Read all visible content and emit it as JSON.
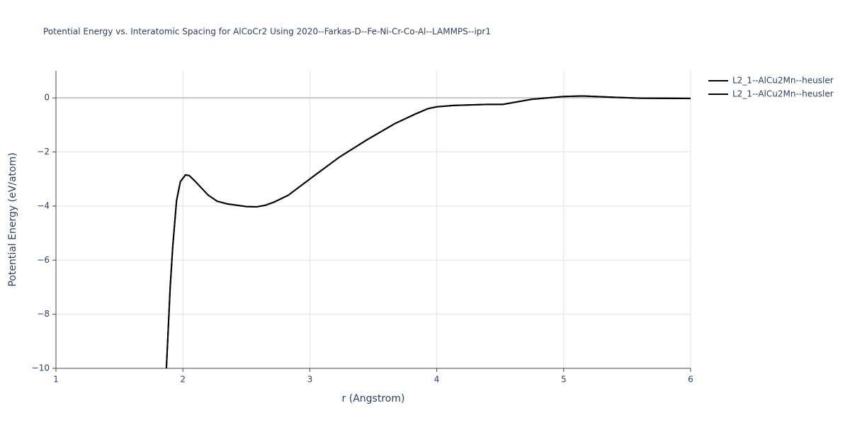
{
  "chart_data": {
    "type": "line",
    "title": "Potential Energy vs. Interatomic Spacing for AlCoCr2 Using 2020--Farkas-D--Fe-Ni-Cr-Co-Al--LAMMPS--ipr1",
    "xlabel": "r (Angstrom)",
    "ylabel": "Potential Energy (eV/atom)",
    "x": [
      1.87,
      1.9,
      1.92,
      1.95,
      1.98,
      2.02,
      2.05,
      2.1,
      2.2,
      2.27,
      2.35,
      2.5,
      2.58,
      2.65,
      2.72,
      2.83,
      3.0,
      3.23,
      3.45,
      3.67,
      3.83,
      3.93,
      4.0,
      4.13,
      4.4,
      4.52,
      4.75,
      5.0,
      5.15,
      5.4,
      5.6,
      6.0
    ],
    "series": [
      {
        "name": "L2_1--AlCu2Mn--heusler",
        "color": "#000000",
        "values": [
          -10,
          -7,
          -5.5,
          -3.8,
          -3.1,
          -2.85,
          -2.87,
          -3.1,
          -3.6,
          -3.82,
          -3.92,
          -4.02,
          -4.03,
          -3.97,
          -3.85,
          -3.6,
          -3.0,
          -2.2,
          -1.55,
          -0.95,
          -0.6,
          -0.4,
          -0.33,
          -0.28,
          -0.24,
          -0.24,
          -0.05,
          0.05,
          0.07,
          0.02,
          -0.01,
          -0.02
        ]
      },
      {
        "name": "L2_1--AlCu2Mn--heusler",
        "color": "#000000",
        "values": [
          -10,
          -7,
          -5.5,
          -3.8,
          -3.1,
          -2.85,
          -2.87,
          -3.1,
          -3.6,
          -3.82,
          -3.92,
          -4.02,
          -4.03,
          -3.97,
          -3.85,
          -3.6,
          -3.0,
          -2.2,
          -1.55,
          -0.95,
          -0.6,
          -0.4,
          -0.33,
          -0.28,
          -0.24,
          -0.24,
          -0.05,
          0.05,
          0.07,
          0.02,
          -0.01,
          -0.02
        ]
      }
    ],
    "xlim": [
      1,
      6
    ],
    "ylim": [
      -10,
      1
    ],
    "xticks": [
      1,
      2,
      3,
      4,
      5,
      6
    ],
    "yticks": [
      {
        "value": -10,
        "label": "−10"
      },
      {
        "value": -8,
        "label": "−8"
      },
      {
        "value": -6,
        "label": "−6"
      },
      {
        "value": -4,
        "label": "−4"
      },
      {
        "value": -2,
        "label": "−2"
      },
      0
    ],
    "grid": true,
    "legend": "right"
  }
}
